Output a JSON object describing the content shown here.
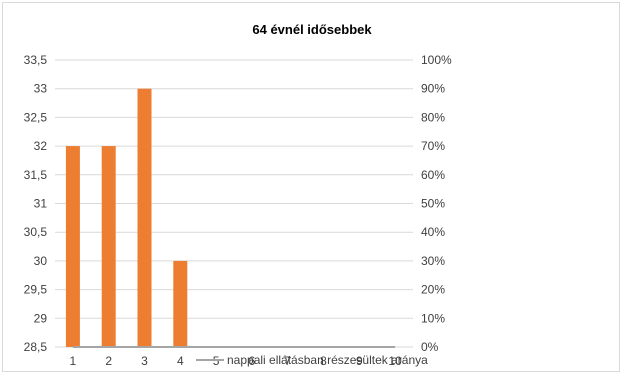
{
  "chart_data": {
    "type": "bar",
    "title": "64 évnél idősebbek",
    "categories": [
      "1",
      "2",
      "3",
      "4",
      "5",
      "6",
      "7",
      "8",
      "9",
      "10"
    ],
    "series": [
      {
        "type": "bar",
        "axis": "left",
        "color": "#ed7d31",
        "values": [
          32,
          32,
          33,
          30,
          null,
          null,
          null,
          null,
          null,
          null
        ]
      },
      {
        "name": "nappali ellátásban részesültek aránya",
        "type": "line",
        "axis": "right",
        "color": "#a5a5a5",
        "values": [
          0,
          0,
          0,
          0,
          0,
          0,
          0,
          0,
          0,
          0
        ]
      }
    ],
    "y_left": {
      "range": [
        28.5,
        33.5
      ],
      "ticks": [
        "28,5",
        "29",
        "29,5",
        "30",
        "30,5",
        "31",
        "31,5",
        "32",
        "32,5",
        "33",
        "33,5"
      ]
    },
    "y_right": {
      "range": [
        0,
        1
      ],
      "ticks": [
        "0%",
        "10%",
        "20%",
        "30%",
        "40%",
        "50%",
        "60%",
        "70%",
        "80%",
        "90%",
        "100%"
      ]
    },
    "grid": true,
    "legend_position": "bottom"
  }
}
